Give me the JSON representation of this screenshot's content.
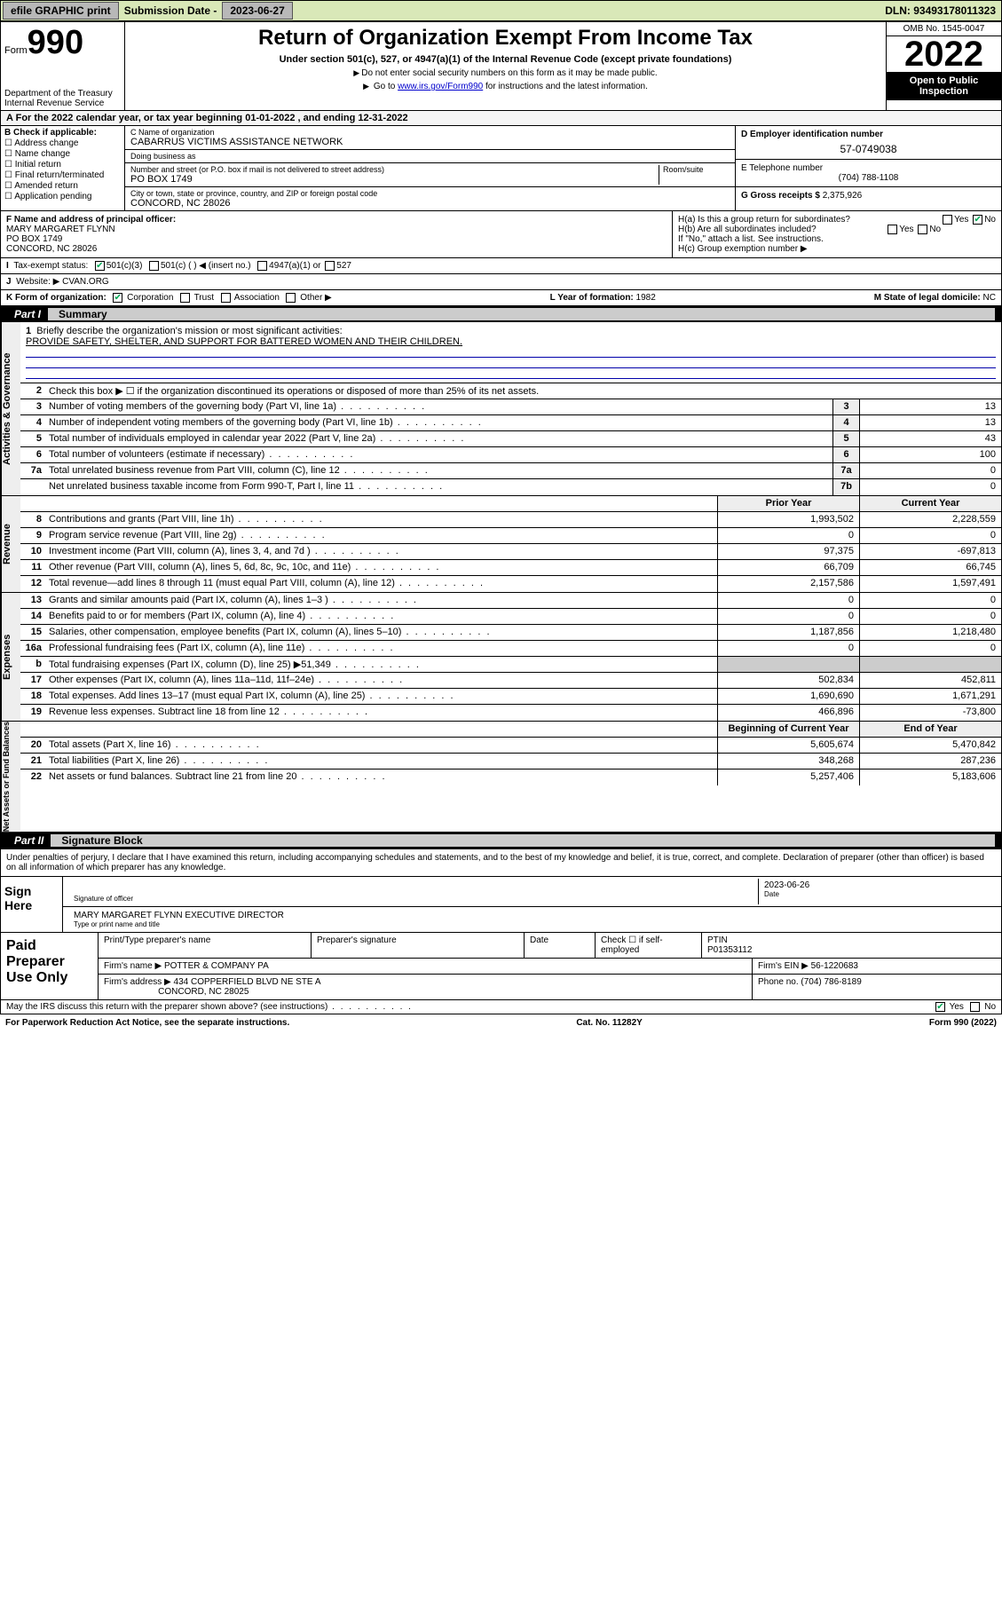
{
  "topbar": {
    "efile": "efile GRAPHIC print",
    "submission_label": "Submission Date - ",
    "submission_date": "2023-06-27",
    "dln_label": "DLN: ",
    "dln": "93493178011323"
  },
  "header": {
    "form_label": "Form",
    "form_number": "990",
    "dept": "Department of the Treasury\nInternal Revenue Service",
    "title": "Return of Organization Exempt From Income Tax",
    "subtitle": "Under section 501(c), 527, or 4947(a)(1) of the Internal Revenue Code (except private foundations)",
    "note1": "Do not enter social security numbers on this form as it may be made public.",
    "note2_pre": "Go to ",
    "note2_link": "www.irs.gov/Form990",
    "note2_post": " for instructions and the latest information.",
    "omb": "OMB No. 1545-0047",
    "year": "2022",
    "open": "Open to Public Inspection"
  },
  "period": {
    "text_pre": "For the 2022 calendar year, or tax year beginning ",
    "begin": "01-01-2022",
    "mid": " , and ending ",
    "end": "12-31-2022"
  },
  "blockB": {
    "label": "B Check if applicable:",
    "opts": [
      "Address change",
      "Name change",
      "Initial return",
      "Final return/terminated",
      "Amended return",
      "Application pending"
    ]
  },
  "blockC": {
    "name_label": "C Name of organization",
    "name": "CABARRUS VICTIMS ASSISTANCE NETWORK",
    "dba_label": "Doing business as",
    "dba": "",
    "street_label": "Number and street (or P.O. box if mail is not delivered to street address)",
    "room_label": "Room/suite",
    "street": "PO BOX 1749",
    "city_label": "City or town, state or province, country, and ZIP or foreign postal code",
    "city": "CONCORD, NC  28026"
  },
  "blockD": {
    "label": "D Employer identification number",
    "value": "57-0749038"
  },
  "blockE": {
    "label": "E Telephone number",
    "value": "(704) 788-1108"
  },
  "blockG": {
    "label": "G Gross receipts $ ",
    "value": "2,375,926"
  },
  "blockF": {
    "label": "F Name and address of principal officer:",
    "name": "MARY MARGARET FLYNN",
    "street": "PO BOX 1749",
    "city": "CONCORD, NC  28026"
  },
  "blockH": {
    "ha": "H(a)  Is this a group return for subordinates?",
    "ha_no": true,
    "hb": "H(b)  Are all subordinates included?",
    "hb_note": "If \"No,\" attach a list. See instructions.",
    "hc": "H(c)  Group exemption number ▶"
  },
  "rowI": {
    "label": "Tax-exempt status:",
    "c501c3": true,
    "opts": [
      "501(c)(3)",
      "501(c) (  ) ◀ (insert no.)",
      "4947(a)(1) or",
      "527"
    ]
  },
  "rowJ": {
    "label": "Website: ▶",
    "value": "CVAN.ORG"
  },
  "rowK": {
    "label": "K Form of organization:",
    "corp": true,
    "opts": [
      "Corporation",
      "Trust",
      "Association",
      "Other ▶"
    ]
  },
  "rowL": {
    "label": "L Year of formation: ",
    "value": "1982"
  },
  "rowM": {
    "label": "M State of legal domicile: ",
    "value": "NC"
  },
  "partI": {
    "num": "Part I",
    "title": "Summary"
  },
  "summary": {
    "q1_label": "Briefly describe the organization's mission or most significant activities:",
    "q1_value": "PROVIDE SAFETY, SHELTER, AND SUPPORT FOR BATTERED WOMEN AND THEIR CHILDREN.",
    "q2": "Check this box ▶ ☐  if the organization discontinued its operations or disposed of more than 25% of its net assets.",
    "rows_gov": [
      {
        "n": "3",
        "d": "Number of voting members of the governing body (Part VI, line 1a)",
        "box": "3",
        "v": "13"
      },
      {
        "n": "4",
        "d": "Number of independent voting members of the governing body (Part VI, line 1b)",
        "box": "4",
        "v": "13"
      },
      {
        "n": "5",
        "d": "Total number of individuals employed in calendar year 2022 (Part V, line 2a)",
        "box": "5",
        "v": "43"
      },
      {
        "n": "6",
        "d": "Total number of volunteers (estimate if necessary)",
        "box": "6",
        "v": "100"
      },
      {
        "n": "7a",
        "d": "Total unrelated business revenue from Part VIII, column (C), line 12",
        "box": "7a",
        "v": "0"
      },
      {
        "n": "",
        "d": "Net unrelated business taxable income from Form 990-T, Part I, line 11",
        "box": "7b",
        "v": "0"
      }
    ],
    "header_prior": "Prior Year",
    "header_current": "Current Year",
    "revenue": [
      {
        "n": "8",
        "d": "Contributions and grants (Part VIII, line 1h)",
        "p": "1,993,502",
        "c": "2,228,559"
      },
      {
        "n": "9",
        "d": "Program service revenue (Part VIII, line 2g)",
        "p": "0",
        "c": "0"
      },
      {
        "n": "10",
        "d": "Investment income (Part VIII, column (A), lines 3, 4, and 7d )",
        "p": "97,375",
        "c": "-697,813"
      },
      {
        "n": "11",
        "d": "Other revenue (Part VIII, column (A), lines 5, 6d, 8c, 9c, 10c, and 11e)",
        "p": "66,709",
        "c": "66,745"
      },
      {
        "n": "12",
        "d": "Total revenue—add lines 8 through 11 (must equal Part VIII, column (A), line 12)",
        "p": "2,157,586",
        "c": "1,597,491"
      }
    ],
    "expenses": [
      {
        "n": "13",
        "d": "Grants and similar amounts paid (Part IX, column (A), lines 1–3 )",
        "p": "0",
        "c": "0"
      },
      {
        "n": "14",
        "d": "Benefits paid to or for members (Part IX, column (A), line 4)",
        "p": "0",
        "c": "0"
      },
      {
        "n": "15",
        "d": "Salaries, other compensation, employee benefits (Part IX, column (A), lines 5–10)",
        "p": "1,187,856",
        "c": "1,218,480"
      },
      {
        "n": "16a",
        "d": "Professional fundraising fees (Part IX, column (A), line 11e)",
        "p": "0",
        "c": "0"
      },
      {
        "n": "b",
        "d": "Total fundraising expenses (Part IX, column (D), line 25) ▶51,349",
        "p": "",
        "c": ""
      },
      {
        "n": "17",
        "d": "Other expenses (Part IX, column (A), lines 11a–11d, 11f–24e)",
        "p": "502,834",
        "c": "452,811"
      },
      {
        "n": "18",
        "d": "Total expenses. Add lines 13–17 (must equal Part IX, column (A), line 25)",
        "p": "1,690,690",
        "c": "1,671,291"
      },
      {
        "n": "19",
        "d": "Revenue less expenses. Subtract line 18 from line 12",
        "p": "466,896",
        "c": "-73,800"
      }
    ],
    "header_begin": "Beginning of Current Year",
    "header_end": "End of Year",
    "netassets": [
      {
        "n": "20",
        "d": "Total assets (Part X, line 16)",
        "p": "5,605,674",
        "c": "5,470,842"
      },
      {
        "n": "21",
        "d": "Total liabilities (Part X, line 26)",
        "p": "348,268",
        "c": "287,236"
      },
      {
        "n": "22",
        "d": "Net assets or fund balances. Subtract line 21 from line 20",
        "p": "5,257,406",
        "c": "5,183,606"
      }
    ],
    "vtabs": [
      "Activities & Governance",
      "Revenue",
      "Expenses",
      "Net Assets or Fund Balances"
    ]
  },
  "partII": {
    "num": "Part II",
    "title": "Signature Block"
  },
  "sig": {
    "declare": "Under penalties of perjury, I declare that I have examined this return, including accompanying schedules and statements, and to the best of my knowledge and belief, it is true, correct, and complete. Declaration of preparer (other than officer) is based on all information of which preparer has any knowledge.",
    "sign_here": "Sign Here",
    "sig_officer": "Signature of officer",
    "date_label": "Date",
    "date": "2023-06-26",
    "officer_name": "MARY MARGARET FLYNN  EXECUTIVE DIRECTOR",
    "name_title_label": "Type or print name and title"
  },
  "paid": {
    "title": "Paid Preparer Use Only",
    "h1": "Print/Type preparer's name",
    "h2": "Preparer's signature",
    "h3": "Date",
    "h4_pre": "Check ☐ if self-employed",
    "ptin_label": "PTIN",
    "ptin": "P01353112",
    "firm_name_label": "Firm's name    ▶",
    "firm_name": "POTTER & COMPANY PA",
    "firm_ein_label": "Firm's EIN ▶",
    "firm_ein": "56-1220683",
    "firm_addr_label": "Firm's address ▶",
    "firm_addr1": "434 COPPERFIELD BLVD NE STE A",
    "firm_addr2": "CONCORD, NC  28025",
    "phone_label": "Phone no. ",
    "phone": "(704) 786-8189"
  },
  "footer": {
    "discuss": "May the IRS discuss this return with the preparer shown above? (see instructions)",
    "yes": true,
    "paperwork": "For Paperwork Reduction Act Notice, see the separate instructions.",
    "catno": "Cat. No. 11282Y",
    "formref": "Form 990 (2022)"
  }
}
